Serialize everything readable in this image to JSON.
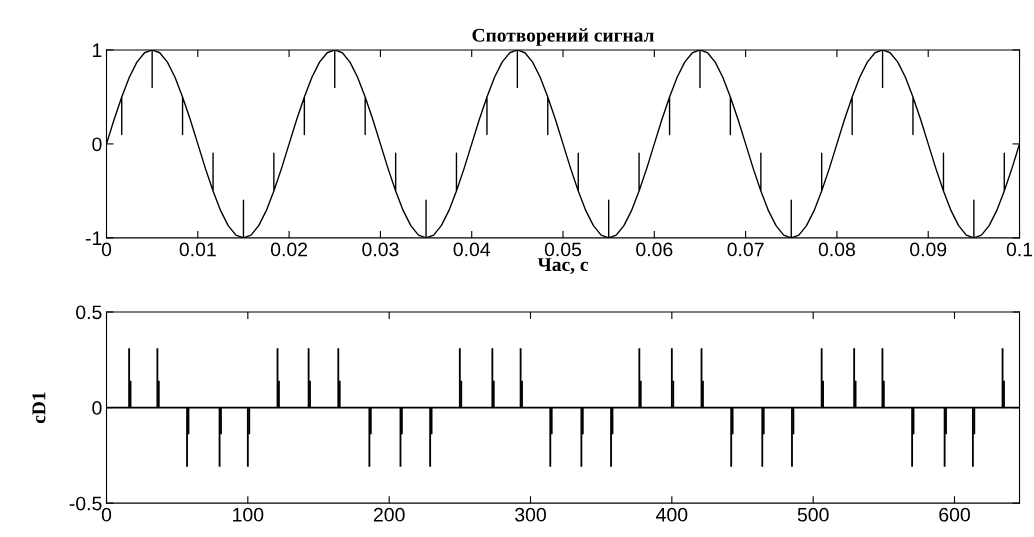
{
  "chart_data": [
    {
      "type": "line",
      "title": "Спотворений сигнал",
      "xlabel": "Час, с",
      "xlim": [
        0,
        0.1
      ],
      "ylim": [
        -1,
        1
      ],
      "xticks": [
        0,
        0.01,
        0.02,
        0.03,
        0.04,
        0.05,
        0.06,
        0.07,
        0.08,
        0.09,
        0.1
      ],
      "yticks": [
        -1,
        0,
        1
      ],
      "grid": false,
      "legend": false,
      "marker": "none",
      "line_style": "solid",
      "series": [
        {
          "color": "#000000",
          "x": [
            0,
            0.00083,
            0.00167,
            0.00167,
            0.00167,
            0.0025,
            0.00333,
            0.00417,
            0.005,
            0.005,
            0.005,
            0.00583,
            0.00667,
            0.0075,
            0.00833,
            0.00833,
            0.00833,
            0.00917,
            0.01,
            0.01083,
            0.01167,
            0.01167,
            0.01167,
            0.0125,
            0.01333,
            0.01417,
            0.015,
            0.015,
            0.015,
            0.01583,
            0.01667,
            0.0175,
            0.01833,
            0.01833,
            0.01833,
            0.01917,
            0.02,
            0.02083,
            0.02167,
            0.02167,
            0.02167,
            0.0225,
            0.02333,
            0.02417,
            0.025,
            0.025,
            0.025,
            0.02583,
            0.02667,
            0.0275,
            0.02833,
            0.02833,
            0.02833,
            0.02917,
            0.03,
            0.03083,
            0.03167,
            0.03167,
            0.03167,
            0.0325,
            0.03333,
            0.03417,
            0.035,
            0.035,
            0.035,
            0.03583,
            0.03667,
            0.0375,
            0.03833,
            0.03833,
            0.03833,
            0.03917,
            0.04,
            0.04083,
            0.04167,
            0.04167,
            0.04167,
            0.0425,
            0.04333,
            0.04417,
            0.045,
            0.045,
            0.045,
            0.04583,
            0.04667,
            0.0475,
            0.04833,
            0.04833,
            0.04833,
            0.04917,
            0.05,
            0.05083,
            0.05167,
            0.05167,
            0.05167,
            0.0525,
            0.05333,
            0.05417,
            0.055,
            0.055,
            0.055,
            0.05583,
            0.05667,
            0.0575,
            0.05833,
            0.05833,
            0.05833,
            0.05917,
            0.06,
            0.06083,
            0.06167,
            0.06167,
            0.06167,
            0.0625,
            0.06333,
            0.06417,
            0.065,
            0.065,
            0.065,
            0.06583,
            0.06667,
            0.0675,
            0.06833,
            0.06833,
            0.06833,
            0.06917,
            0.07,
            0.07083,
            0.07167,
            0.07167,
            0.07167,
            0.0725,
            0.07333,
            0.07417,
            0.075,
            0.075,
            0.075,
            0.07583,
            0.07667,
            0.0775,
            0.07833,
            0.07833,
            0.07833,
            0.07917,
            0.08,
            0.08083,
            0.08167,
            0.08167,
            0.08167,
            0.0825,
            0.08333,
            0.08417,
            0.085,
            0.085,
            0.085,
            0.08583,
            0.08667,
            0.0875,
            0.08833,
            0.08833,
            0.08833,
            0.08917,
            0.09,
            0.09083,
            0.09167,
            0.09167,
            0.09167,
            0.0925,
            0.09333,
            0.09417,
            0.095,
            0.095,
            0.095,
            0.09583,
            0.09667,
            0.0975,
            0.09833,
            0.09833,
            0.09833,
            0.09917,
            0.1
          ],
          "values": [
            0,
            0.26,
            0.5,
            0.1,
            0.5,
            0.71,
            0.87,
            0.97,
            1,
            0.6,
            1,
            0.97,
            0.87,
            0.71,
            0.5,
            0.1,
            0.5,
            0.26,
            0,
            -0.26,
            -0.5,
            -0.1,
            -0.5,
            -0.71,
            -0.87,
            -0.97,
            -1,
            -0.6,
            -1,
            -0.97,
            -0.87,
            -0.71,
            -0.5,
            -0.1,
            -0.5,
            -0.26,
            0,
            0.26,
            0.5,
            0.1,
            0.5,
            0.71,
            0.87,
            0.97,
            1,
            0.6,
            1,
            0.97,
            0.87,
            0.71,
            0.5,
            0.1,
            0.5,
            0.26,
            0,
            -0.26,
            -0.5,
            -0.1,
            -0.5,
            -0.71,
            -0.87,
            -0.97,
            -1,
            -0.6,
            -1,
            -0.97,
            -0.87,
            -0.71,
            -0.5,
            -0.1,
            -0.5,
            -0.26,
            0,
            0.26,
            0.5,
            0.1,
            0.5,
            0.71,
            0.87,
            0.97,
            1,
            0.6,
            1,
            0.97,
            0.87,
            0.71,
            0.5,
            0.1,
            0.5,
            0.26,
            0,
            -0.26,
            -0.5,
            -0.1,
            -0.5,
            -0.71,
            -0.87,
            -0.97,
            -1,
            -0.6,
            -1,
            -0.97,
            -0.87,
            -0.71,
            -0.5,
            -0.1,
            -0.5,
            -0.26,
            0,
            0.26,
            0.5,
            0.1,
            0.5,
            0.71,
            0.87,
            0.97,
            1,
            0.6,
            1,
            0.97,
            0.87,
            0.71,
            0.5,
            0.1,
            0.5,
            0.26,
            0,
            -0.26,
            -0.5,
            -0.1,
            -0.5,
            -0.71,
            -0.87,
            -0.97,
            -1,
            -0.6,
            -1,
            -0.97,
            -0.87,
            -0.71,
            -0.5,
            -0.1,
            -0.5,
            -0.26,
            0,
            0.26,
            0.5,
            0.1,
            0.5,
            0.71,
            0.87,
            0.97,
            1,
            0.6,
            1,
            0.97,
            0.87,
            0.71,
            0.5,
            0.1,
            0.5,
            0.26,
            0,
            -0.26,
            -0.5,
            -0.1,
            -0.5,
            -0.71,
            -0.87,
            -0.97,
            -1,
            -0.6,
            -1,
            -0.97,
            -0.87,
            -0.71,
            -0.5,
            -0.1,
            -0.5,
            -0.26,
            0
          ]
        }
      ]
    },
    {
      "type": "bar",
      "ylabel": "cD1",
      "ref_lines": [
        {
          "axis": "y",
          "value": 0,
          "color": "#000000",
          "line_style": "solid"
        }
      ],
      "xlim": [
        0,
        646
      ],
      "ylim": [
        -0.5,
        0.5
      ],
      "xticks": [
        0,
        100,
        200,
        300,
        400,
        500,
        600
      ],
      "yticks": [
        -0.5,
        0,
        0.5
      ],
      "grid": false,
      "legend": false,
      "series": [
        {
          "color": "#000000",
          "x": [
            16,
            17,
            36,
            37,
            57,
            58,
            80,
            81,
            100,
            101,
            121,
            122,
            143,
            144,
            164,
            165,
            186,
            187,
            208,
            209,
            229,
            230,
            250,
            251,
            273,
            274,
            293,
            294,
            314,
            315,
            336,
            337,
            357,
            358,
            377,
            378,
            400,
            401,
            421,
            422,
            442,
            443,
            464,
            465,
            485,
            486,
            506,
            507,
            529,
            530,
            549,
            550,
            570,
            571,
            593,
            594,
            613,
            614,
            634,
            635
          ],
          "values": [
            0.31,
            0.14,
            0.31,
            0.14,
            -0.31,
            -0.14,
            -0.31,
            -0.14,
            -0.31,
            -0.14,
            0.31,
            0.14,
            0.31,
            0.14,
            0.31,
            0.14,
            -0.31,
            -0.14,
            -0.31,
            -0.14,
            -0.31,
            -0.14,
            0.31,
            0.14,
            0.31,
            0.14,
            0.31,
            0.14,
            -0.31,
            -0.14,
            -0.31,
            -0.14,
            -0.31,
            -0.14,
            0.31,
            0.14,
            0.31,
            0.14,
            0.31,
            0.14,
            -0.31,
            -0.14,
            -0.31,
            -0.14,
            -0.31,
            -0.14,
            0.31,
            0.14,
            0.31,
            0.14,
            0.31,
            0.14,
            -0.31,
            -0.14,
            -0.31,
            -0.14,
            -0.31,
            -0.14,
            0.31,
            0.14
          ]
        }
      ]
    }
  ]
}
